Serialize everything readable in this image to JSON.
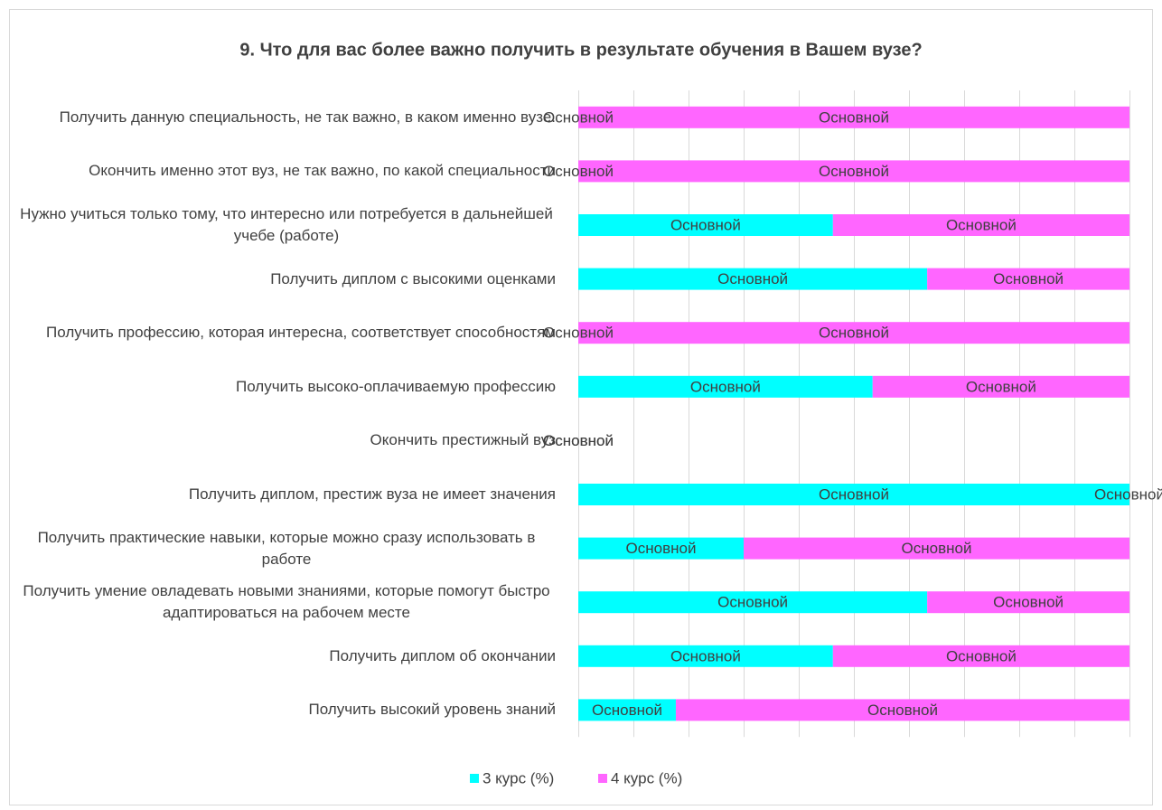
{
  "chart_data": {
    "type": "stacked_bar_horizontal",
    "title": "9. Что для вас более важно получить в результате обучения в Вашем вузе?",
    "categories": [
      "Получить данную специальность, не так важно, в каком именно вузе.",
      "Окончить именно этот вуз, не так важно, по какой специальности",
      "Нужно учиться только тому, что интересно или потребуется в дальнейшей учебе (работе)",
      "Получить диплом с высокими оценками",
      "Получить профессию, которая интересна, соответствует способностям",
      "Получить высоко-оплачиваемую профессию",
      "Окончить престижный вуз",
      "Получить диплом, престиж вуза не имеет значения",
      "Получить практические навыки, которые можно сразу использовать в работе",
      "Получить умение овладевать новыми знаниями, которые помогут быстро адаптироваться на рабочем месте",
      "Получить диплом об окончании",
      "Получить высокий уровень знаний"
    ],
    "series": [
      {
        "name": "3 курс (%)",
        "color": "#00ffff",
        "values": [
          0,
          0,
          46.2,
          63.3,
          0,
          53.4,
          0,
          100,
          30,
          63.3,
          46.2,
          17.7
        ],
        "value_labels": [
          "Основной",
          "Основной",
          "Основной",
          "Основной",
          "Основной",
          "Основной",
          "Основной",
          "Основной",
          "Основной",
          "Основной",
          "Основной",
          "Основной"
        ]
      },
      {
        "name": "4 курс (%)",
        "color": "#ff66ff",
        "values": [
          100,
          100,
          53.8,
          36.7,
          100,
          46.6,
          0,
          0,
          70,
          36.7,
          53.8,
          82.3
        ],
        "value_labels": [
          "Основной",
          "Основной",
          "Основной",
          "Основной",
          "Основной",
          "Основной",
          "Основной",
          "Основной",
          "Основной",
          "Основной",
          "Основной",
          "Основной"
        ]
      }
    ],
    "xlim": [
      0,
      100
    ],
    "xticks": [
      0,
      10,
      20,
      30,
      40,
      50,
      60,
      70,
      80,
      90,
      100
    ],
    "grid": true,
    "legend": "bottom"
  }
}
